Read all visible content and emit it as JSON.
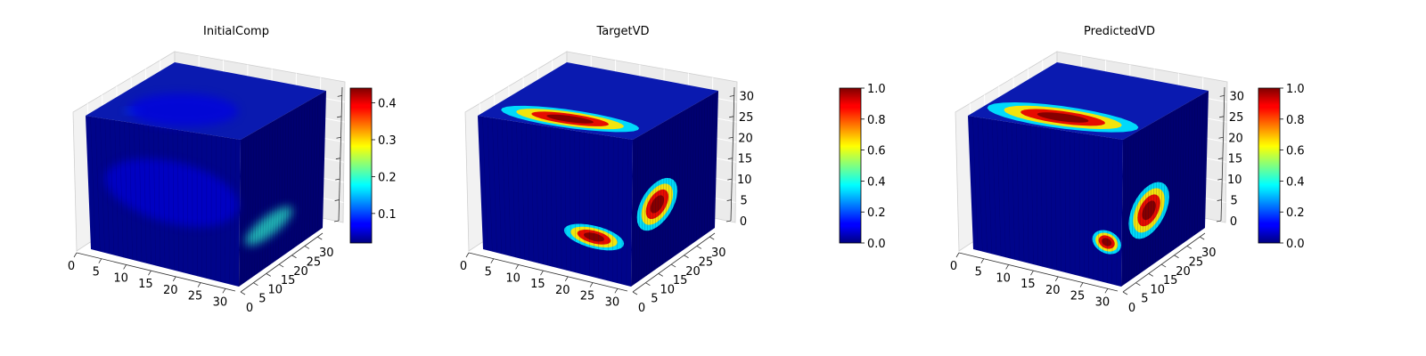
{
  "chart_data": [
    {
      "type": "heatmap",
      "title": "InitialComp",
      "grid": true,
      "legend": "colorbar-right",
      "colormap": "jet",
      "x_ticks": [
        "0",
        "5",
        "10",
        "15",
        "20",
        "25",
        "30"
      ],
      "y_ticks": [
        "0",
        "5",
        "10",
        "15",
        "20",
        "25",
        "30"
      ],
      "z_ticks": [],
      "xlim": [
        0,
        32
      ],
      "ylim": [
        0,
        32
      ],
      "zlim": [
        0,
        32
      ],
      "colorbar": {
        "min": 0.02,
        "max": 0.44,
        "ticks": [
          "0.1",
          "0.2",
          "0.3",
          "0.4"
        ],
        "tick_values": [
          0.1,
          0.2,
          0.3,
          0.4
        ]
      },
      "regions": [
        {
          "face": "top",
          "u": 0.18,
          "v": 0.2,
          "ru": 0.05,
          "rv": 0.06,
          "value": 0.2
        },
        {
          "face": "top",
          "u": 0.32,
          "v": 0.45,
          "ru": 0.35,
          "rv": 0.4,
          "value": 0.1
        },
        {
          "face": "front",
          "u": 0.55,
          "v": 0.45,
          "ru": 0.55,
          "rv": 0.28,
          "value": 0.09
        },
        {
          "face": "side",
          "u": 0.35,
          "v": 0.72,
          "ru": 0.35,
          "rv": 0.1,
          "value": 0.42
        }
      ]
    },
    {
      "type": "heatmap",
      "title": "TargetVD",
      "grid": true,
      "legend": "colorbar-right",
      "colormap": "jet",
      "x_ticks": [
        "0",
        "5",
        "10",
        "15",
        "20",
        "25",
        "30"
      ],
      "y_ticks": [
        "0",
        "5",
        "10",
        "15",
        "20",
        "25",
        "30"
      ],
      "z_ticks": [
        "0",
        "5",
        "10",
        "15",
        "20",
        "25",
        "30"
      ],
      "xlim": [
        0,
        32
      ],
      "ylim": [
        0,
        32
      ],
      "zlim": [
        0,
        32
      ],
      "colorbar": {
        "min": 0.0,
        "max": 1.0,
        "ticks": [
          "0.0",
          "0.2",
          "0.4",
          "0.6",
          "0.8",
          "1.0"
        ],
        "tick_values": [
          0,
          0.2,
          0.4,
          0.6,
          0.8,
          1.0
        ]
      },
      "regions": [
        {
          "face": "top",
          "u": 0.17,
          "v": 0.5,
          "ru": 0.18,
          "rv": 0.55,
          "value": 1.0
        },
        {
          "face": "front",
          "u": 0.75,
          "v": 0.72,
          "ru": 0.25,
          "rv": 0.1,
          "value": 1.0
        },
        {
          "face": "side",
          "u": 0.3,
          "v": 0.55,
          "ru": 0.3,
          "rv": 0.2,
          "value": 1.0
        }
      ]
    },
    {
      "type": "heatmap",
      "title": "PredictedVD",
      "grid": true,
      "legend": "colorbar-right",
      "colormap": "jet",
      "x_ticks": [
        "0",
        "5",
        "10",
        "15",
        "20",
        "25",
        "30"
      ],
      "y_ticks": [
        "0",
        "5",
        "10",
        "15",
        "20",
        "25",
        "30"
      ],
      "z_ticks": [
        "0",
        "5",
        "10",
        "15",
        "20",
        "25",
        "30"
      ],
      "xlim": [
        0,
        32
      ],
      "ylim": [
        0,
        32
      ],
      "zlim": [
        0,
        32
      ],
      "colorbar": {
        "min": 0.0,
        "max": 1.0,
        "ticks": [
          "0.0",
          "0.2",
          "0.4",
          "0.6",
          "0.8",
          "1.0"
        ],
        "tick_values": [
          0,
          0.2,
          0.4,
          0.6,
          0.8,
          1.0
        ]
      },
      "regions": [
        {
          "face": "top",
          "u": 0.2,
          "v": 0.5,
          "ru": 0.22,
          "rv": 0.6,
          "value": 1.0
        },
        {
          "face": "front",
          "u": 0.9,
          "v": 0.72,
          "ru": 0.12,
          "rv": 0.1,
          "value": 0.95
        },
        {
          "face": "side",
          "u": 0.32,
          "v": 0.6,
          "ru": 0.3,
          "rv": 0.22,
          "value": 1.0
        }
      ]
    }
  ]
}
